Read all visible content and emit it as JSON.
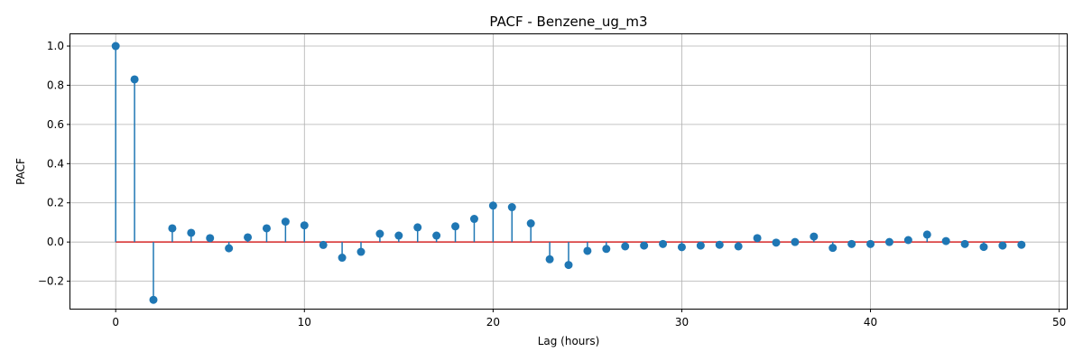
{
  "chart_data": {
    "type": "stem",
    "title": "PACF - Benzene_ug_m3",
    "xlabel": "Lag (hours)",
    "ylabel": "PACF",
    "xlim": [
      -2.4,
      50.4
    ],
    "ylim": [
      -0.34,
      1.06
    ],
    "xticks": [
      0,
      10,
      20,
      30,
      40,
      50
    ],
    "xtick_labels": [
      "0",
      "10",
      "20",
      "30",
      "40",
      "50"
    ],
    "yticks": [
      -0.2,
      0.0,
      0.2,
      0.4,
      0.6,
      0.8,
      1.0
    ],
    "ytick_labels": [
      "−0.2",
      "0.0",
      "0.2",
      "0.4",
      "0.6",
      "0.8",
      "1.0"
    ],
    "grid": true,
    "baseline": 0,
    "colors": {
      "stem": "#1f77b4",
      "baseline": "#d62728",
      "grid": "#b0b0b0"
    },
    "series": [
      {
        "x": [
          0,
          1,
          2,
          3,
          4,
          5,
          6,
          7,
          8,
          9,
          10,
          11,
          12,
          13,
          14,
          15,
          16,
          17,
          18,
          19,
          20,
          21,
          22,
          23,
          24,
          25,
          26,
          27,
          28,
          29,
          30,
          31,
          32,
          33,
          34,
          35,
          36,
          37,
          38,
          39,
          40,
          41,
          42,
          43,
          44,
          45,
          46,
          47,
          48
        ],
        "values": [
          1.0,
          0.83,
          -0.295,
          0.07,
          0.047,
          0.02,
          -0.032,
          0.024,
          0.07,
          0.104,
          0.085,
          -0.015,
          -0.08,
          -0.05,
          0.042,
          0.033,
          0.075,
          0.033,
          0.08,
          0.118,
          0.186,
          0.178,
          0.095,
          -0.088,
          -0.117,
          -0.045,
          -0.035,
          -0.022,
          -0.018,
          -0.01,
          -0.026,
          -0.018,
          -0.014,
          -0.022,
          0.02,
          -0.003,
          0.0,
          0.028,
          -0.03,
          -0.01,
          -0.01,
          0.0,
          0.01,
          0.038,
          0.005,
          -0.01,
          -0.025,
          -0.018,
          -0.014
        ]
      }
    ]
  }
}
